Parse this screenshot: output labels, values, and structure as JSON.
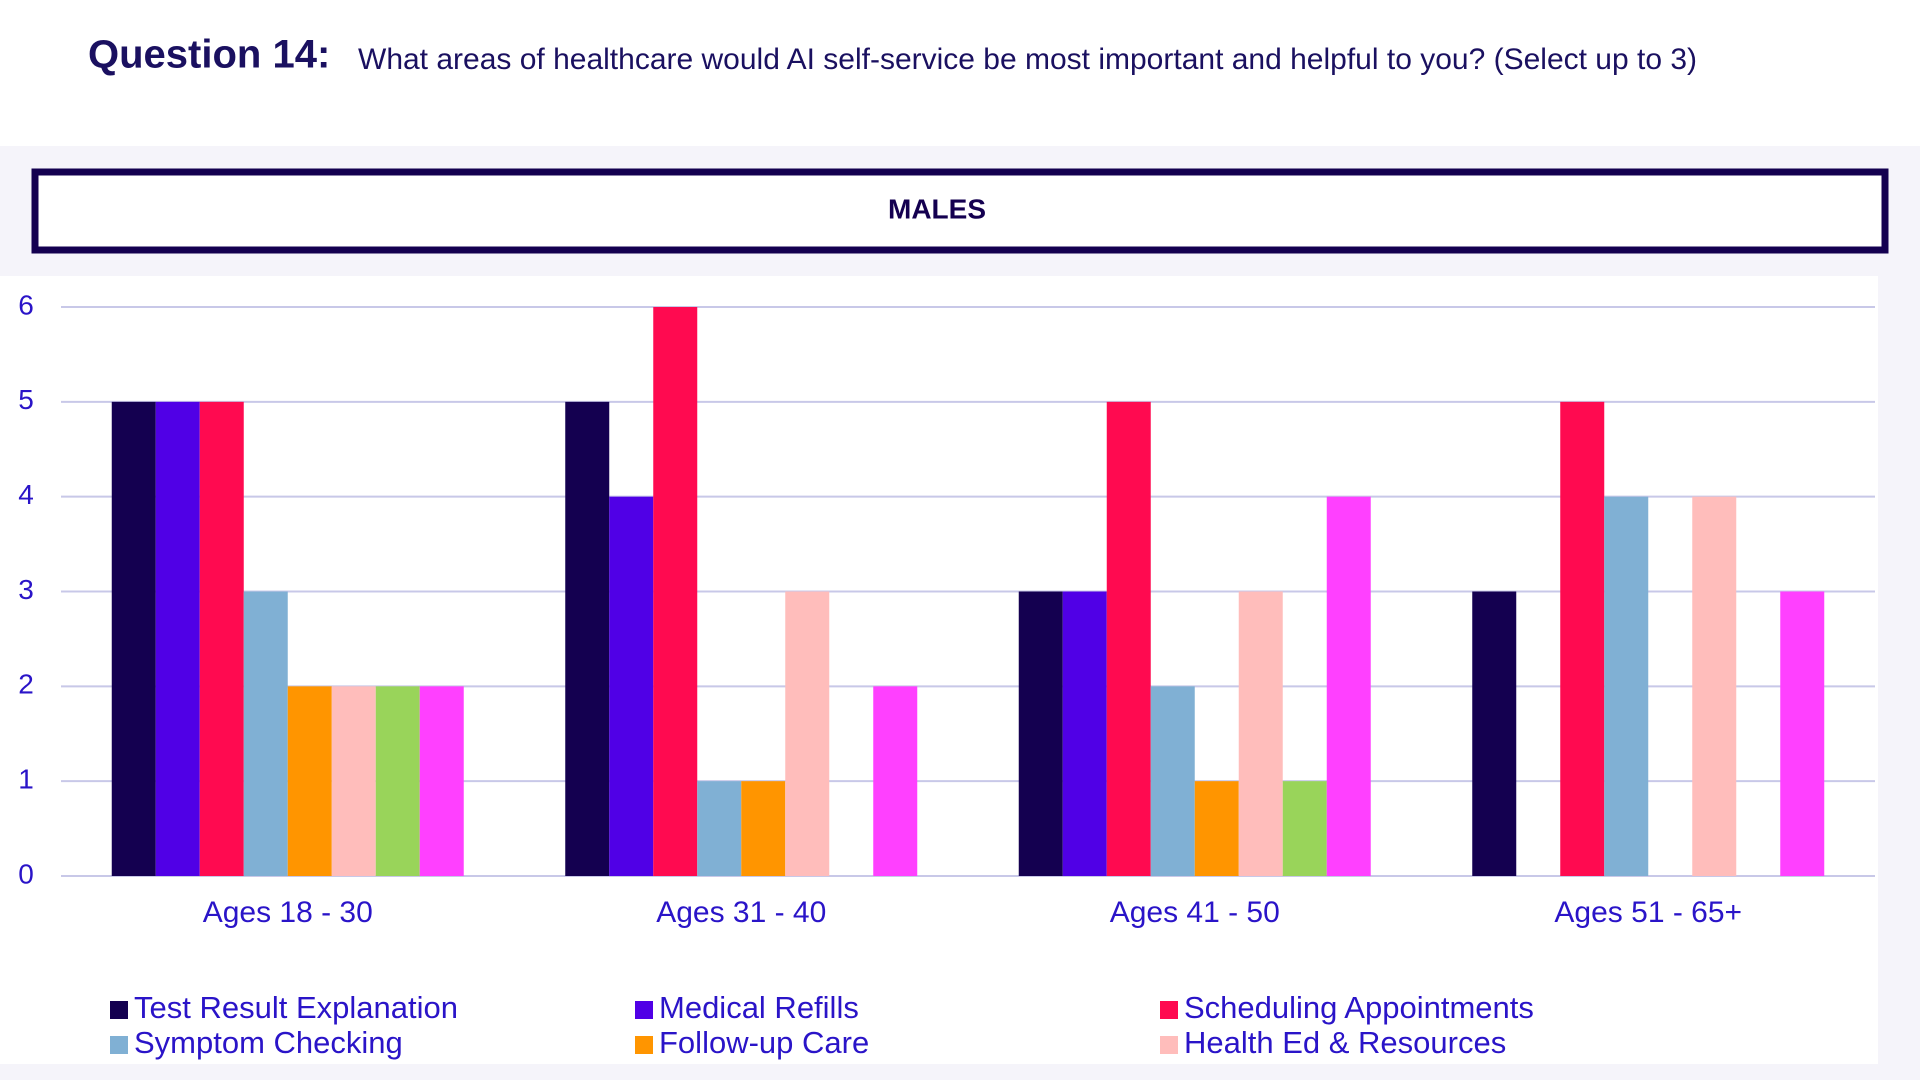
{
  "chart_data": {
    "type": "bar",
    "title_label": "Question 14:",
    "title": "What areas of healthcare would AI self-service be most important and helpful to you? (Select up to 3)",
    "panel_title": "MALES",
    "categories": [
      "Ages 18 - 30",
      "Ages 31 - 40",
      "Ages 41 - 50",
      "Ages 51 - 65+"
    ],
    "series": [
      {
        "name": "Test Result Explanation",
        "color": "#140050",
        "values": [
          5,
          5,
          3,
          3
        ]
      },
      {
        "name": "Medical Refills",
        "color": "#5000e6",
        "values": [
          5,
          4,
          3,
          0
        ]
      },
      {
        "name": "Scheduling Appointments",
        "color": "#ff0a50",
        "values": [
          5,
          6,
          5,
          5
        ]
      },
      {
        "name": "Symptom Checking",
        "color": "#80b0d4",
        "values": [
          3,
          1,
          2,
          4
        ]
      },
      {
        "name": "Follow-up Care",
        "color": "#ff9500",
        "values": [
          2,
          1,
          1,
          0
        ]
      },
      {
        "name": "Health Ed & Resources",
        "color": "#ffbdbb",
        "values": [
          2,
          3,
          3,
          4
        ]
      },
      {
        "color": "#99d45a",
        "values": [
          2,
          0,
          1,
          0
        ]
      },
      {
        "color": "#ff40ff",
        "values": [
          2,
          2,
          4,
          3
        ]
      }
    ],
    "ylim": [
      0,
      6
    ],
    "yticks": [
      0,
      1,
      2,
      3,
      4,
      5,
      6
    ],
    "grid": true
  }
}
